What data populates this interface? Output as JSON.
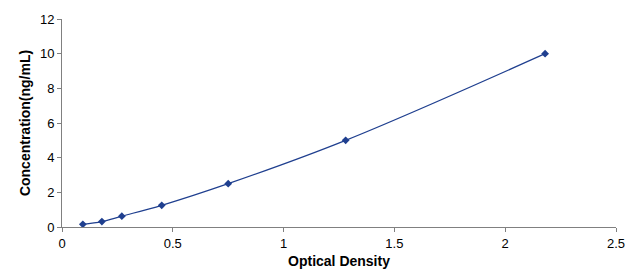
{
  "chart_data": {
    "type": "line",
    "x_label": "Optical Density",
    "y_label": "Concentration(ng/mL)",
    "x": [
      0.094,
      0.18,
      0.27,
      0.45,
      0.75,
      1.28,
      2.18
    ],
    "values": [
      0.156,
      0.313,
      0.625,
      1.25,
      2.5,
      5,
      10
    ],
    "color": "#1f3f8f",
    "marker": "diamond",
    "xlim": [
      0,
      2.5
    ],
    "xticks": [
      0,
      0.5,
      1,
      1.5,
      2,
      2.5
    ],
    "ylim": [
      0,
      12
    ],
    "yticks": [
      0,
      2,
      4,
      6,
      8,
      10,
      12
    ],
    "grid": false
  }
}
